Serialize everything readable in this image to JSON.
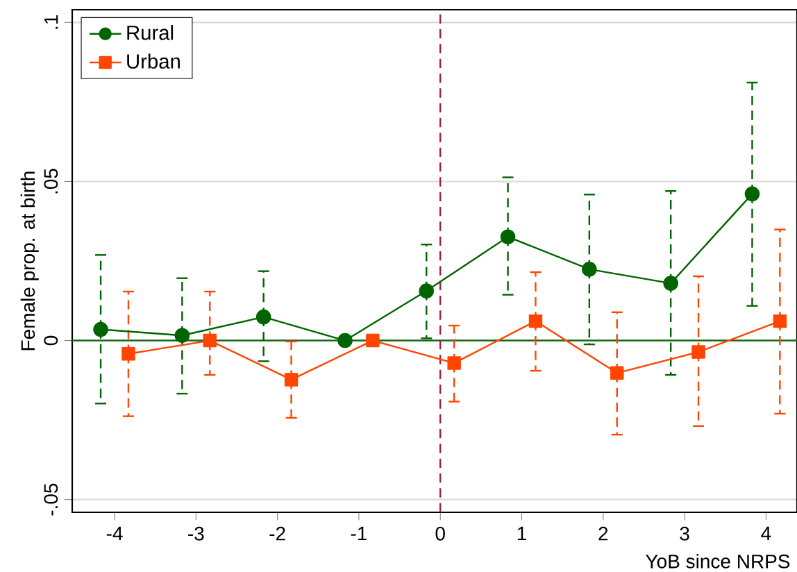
{
  "chart_data": {
    "type": "line",
    "xlabel": "YoB since NRPS",
    "ylabel": "Female prop. at birth",
    "xlim": [
      -4.52,
      4.38
    ],
    "ylim": [
      -0.054,
      0.104
    ],
    "xticks": [
      -4,
      -3,
      -2,
      -1,
      0,
      1,
      2,
      3,
      4
    ],
    "yticks": [
      {
        "value": -0.05,
        "label": "-.05"
      },
      0,
      {
        "value": 0.05,
        "label": ".05"
      },
      {
        "value": 0.1,
        "label": ".1"
      }
    ],
    "grid": "y",
    "legend": "top left",
    "line_style": "solid",
    "ref_lines": [
      {
        "axis": "y",
        "value": 0,
        "color": "#1a6b1a",
        "line_style": "solid"
      },
      {
        "axis": "x",
        "value": 0,
        "color": "#a0204a",
        "line_style": "dashed"
      }
    ],
    "series": [
      {
        "name": "Rural",
        "color": "#006400",
        "marker": "circle",
        "x": [
          -4.17,
          -3.17,
          -2.17,
          -1.17,
          -0.17,
          0.83,
          1.83,
          2.83,
          3.83
        ],
        "values": [
          0.0035,
          0.0016,
          0.0074,
          0,
          0.0156,
          0.0326,
          0.0224,
          0.018,
          0.0461
        ],
        "errors": [
          [
            -0.0198,
            0.0269
          ],
          [
            -0.0167,
            0.0196
          ],
          [
            -0.0065,
            0.0218
          ],
          null,
          [
            0.0007,
            0.0302
          ],
          [
            0.0144,
            0.0513
          ],
          [
            -0.0012,
            0.0459
          ],
          [
            -0.0108,
            0.047
          ],
          [
            0.0109,
            0.0811
          ]
        ]
      },
      {
        "name": "Urban",
        "color": "#ff4500",
        "marker": "square",
        "x": [
          -3.83,
          -2.83,
          -1.83,
          -0.83,
          0.17,
          1.17,
          2.17,
          3.17,
          4.17
        ],
        "values": [
          -0.0042,
          0,
          -0.0123,
          0,
          -0.0071,
          0.0061,
          -0.0102,
          -0.0036,
          0.0061
        ],
        "errors": [
          [
            -0.0238,
            0.0154
          ],
          [
            -0.0108,
            0.0154
          ],
          [
            -0.0243,
            -0.0003
          ],
          null,
          [
            -0.0192,
            0.0047
          ],
          [
            -0.0095,
            0.0215
          ],
          [
            -0.0296,
            0.0089
          ],
          [
            -0.0269,
            0.0202
          ],
          [
            -0.023,
            0.0349
          ]
        ]
      }
    ]
  }
}
